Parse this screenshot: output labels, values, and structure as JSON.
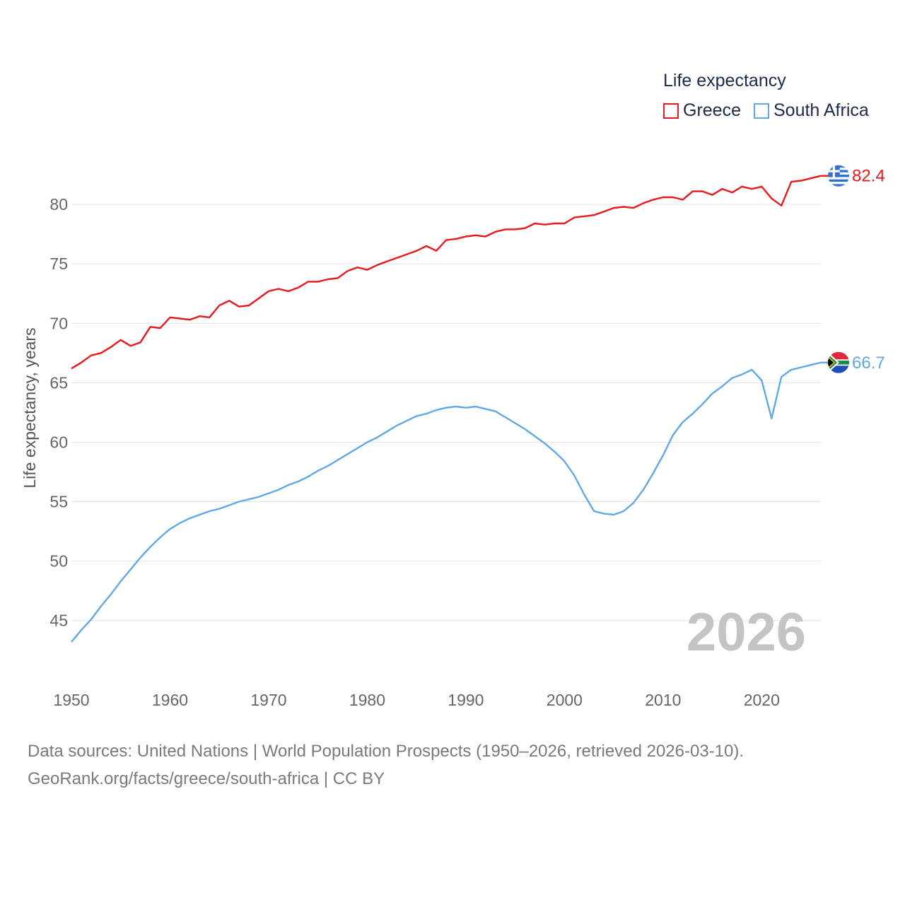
{
  "legend": {
    "title": "Life expectancy"
  },
  "footer": {
    "line1": "Data sources: United Nations | World Population Prospects (1950–2026, retrieved 2026-03-10).",
    "line2": "GeoRank.org/facts/greece/south-africa | CC BY"
  },
  "chart_data": {
    "type": "line",
    "title": "Life expectancy",
    "xlabel": "",
    "ylabel": "Life expectancy, years",
    "xlim": [
      1950,
      2026
    ],
    "ylim": [
      41,
      85
    ],
    "xticks": [
      1950,
      1960,
      1970,
      1980,
      1990,
      2000,
      2010,
      2020
    ],
    "yticks": [
      45,
      50,
      55,
      60,
      65,
      70,
      75,
      80
    ],
    "grid": true,
    "year_label": "2026",
    "x": [
      1950,
      1951,
      1952,
      1953,
      1954,
      1955,
      1956,
      1957,
      1958,
      1959,
      1960,
      1961,
      1962,
      1963,
      1964,
      1965,
      1966,
      1967,
      1968,
      1969,
      1970,
      1971,
      1972,
      1973,
      1974,
      1975,
      1976,
      1977,
      1978,
      1979,
      1980,
      1981,
      1982,
      1983,
      1984,
      1985,
      1986,
      1987,
      1988,
      1989,
      1990,
      1991,
      1992,
      1993,
      1994,
      1995,
      1996,
      1997,
      1998,
      1999,
      2000,
      2001,
      2002,
      2003,
      2004,
      2005,
      2006,
      2007,
      2008,
      2009,
      2010,
      2011,
      2012,
      2013,
      2014,
      2015,
      2016,
      2017,
      2018,
      2019,
      2020,
      2021,
      2022,
      2023,
      2024,
      2025,
      2026
    ],
    "series": [
      {
        "name": "Greece",
        "color": "#e8191b",
        "end_label": "82.4",
        "flag": "greece-flag-icon",
        "values": [
          66.2,
          66.7,
          67.3,
          67.5,
          68.0,
          68.6,
          68.1,
          68.4,
          69.7,
          69.6,
          70.5,
          70.4,
          70.3,
          70.6,
          70.5,
          71.5,
          71.9,
          71.4,
          71.5,
          72.1,
          72.7,
          72.9,
          72.7,
          73.0,
          73.5,
          73.5,
          73.7,
          73.8,
          74.4,
          74.7,
          74.5,
          74.9,
          75.2,
          75.5,
          75.8,
          76.1,
          76.5,
          76.1,
          77.0,
          77.1,
          77.3,
          77.4,
          77.3,
          77.7,
          77.9,
          77.9,
          78.0,
          78.4,
          78.3,
          78.4,
          78.4,
          78.9,
          79.0,
          79.1,
          79.4,
          79.7,
          79.8,
          79.7,
          80.1,
          80.4,
          80.6,
          80.6,
          80.4,
          81.1,
          81.1,
          80.8,
          81.3,
          81.0,
          81.5,
          81.3,
          81.5,
          80.5,
          79.9,
          81.9,
          82.0,
          82.2,
          82.4
        ]
      },
      {
        "name": "South Africa",
        "color": "#62a8e5",
        "end_label": "66.7",
        "flag": "south-africa-flag-icon",
        "values": [
          43.2,
          44.2,
          45.1,
          46.2,
          47.2,
          48.3,
          49.3,
          50.3,
          51.2,
          52.0,
          52.7,
          53.2,
          53.6,
          53.9,
          54.2,
          54.4,
          54.7,
          55.0,
          55.2,
          55.4,
          55.7,
          56.0,
          56.4,
          56.7,
          57.1,
          57.6,
          58.0,
          58.5,
          59.0,
          59.5,
          60.0,
          60.4,
          60.9,
          61.4,
          61.8,
          62.2,
          62.4,
          62.7,
          62.9,
          63.0,
          62.9,
          63.0,
          62.8,
          62.6,
          62.1,
          61.6,
          61.1,
          60.5,
          59.9,
          59.2,
          58.4,
          57.2,
          55.6,
          54.2,
          54.0,
          53.9,
          54.2,
          54.9,
          56.0,
          57.4,
          58.9,
          60.6,
          61.7,
          62.4,
          63.2,
          64.1,
          64.7,
          65.4,
          65.7,
          66.1,
          65.2,
          62.0,
          65.5,
          66.1,
          66.3,
          66.5,
          66.7
        ]
      }
    ]
  }
}
